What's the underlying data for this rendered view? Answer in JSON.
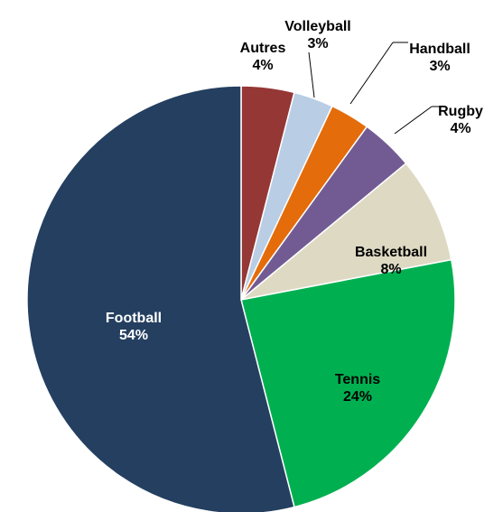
{
  "chart_data": {
    "type": "pie",
    "title": "",
    "start_angle_deg": 0,
    "direction": "clockwise",
    "slices": [
      {
        "label": "Autres",
        "value": 4,
        "display": "4%",
        "color": "#953735"
      },
      {
        "label": "Volleyball",
        "value": 3,
        "display": "3%",
        "color": "#B9CDE5"
      },
      {
        "label": "Handball",
        "value": 3,
        "display": "3%",
        "color": "#E46C0A"
      },
      {
        "label": "Rugby",
        "value": 4,
        "display": "4%",
        "color": "#725B93"
      },
      {
        "label": "Basketball",
        "value": 8,
        "display": "8%",
        "color": "#DDD9C3"
      },
      {
        "label": "Tennis",
        "value": 24,
        "display": "24%",
        "color": "#00B050"
      },
      {
        "label": "Football",
        "value": 54,
        "display": "54%",
        "color": "#243F60"
      }
    ]
  }
}
